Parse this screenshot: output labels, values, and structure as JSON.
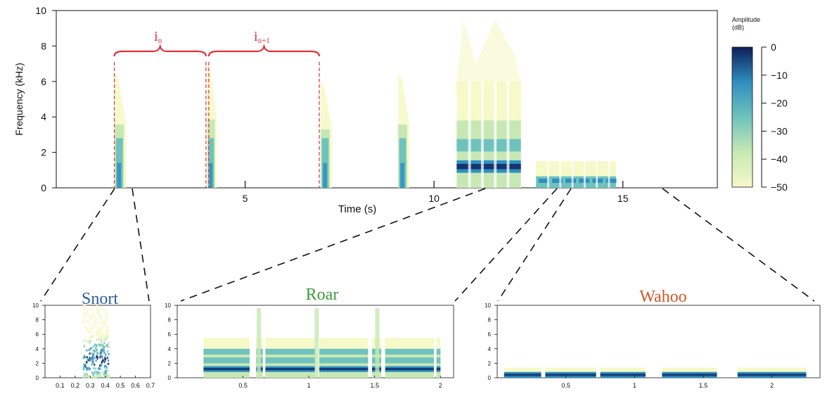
{
  "colors": {
    "scale_low": "#f6f9c8",
    "scale_mid1": "#c7e8b4",
    "scale_mid2": "#6fc2bd",
    "scale_mid3": "#2f8fc0",
    "scale_high": "#0e1e5a",
    "annotation": "#e0303a",
    "snort_title": "#2c5d9c",
    "roar_title": "#3c9a3c",
    "wahoo_title": "#d2572a"
  },
  "chart_data": [
    {
      "type": "heatmap",
      "xlabel": "Time (s)",
      "ylabel": "Frequency (kHz)",
      "xlim": [
        0,
        17.5
      ],
      "ylim": [
        0,
        10
      ],
      "xticks": [
        5,
        10,
        15
      ],
      "yticks": [
        0,
        2,
        4,
        6,
        8,
        10
      ],
      "colorbar": {
        "title": "Amplitude",
        "unit": "(dB)",
        "ticks": [
          0,
          -10,
          -20,
          -30,
          -40,
          -50
        ],
        "range": [
          -50,
          0
        ]
      },
      "annotations": [
        {
          "label": "i",
          "sub": "n",
          "x_start": 1.5,
          "x_end": 4.0
        },
        {
          "label": "i",
          "sub": "n+1",
          "x_start": 4.0,
          "x_end": 7.0
        }
      ],
      "events": [
        {
          "kind": "snort",
          "t_start": 1.55,
          "t_end": 1.85,
          "f_max": 6.5,
          "peak_f": 2.0
        },
        {
          "kind": "snort",
          "t_start": 4.0,
          "t_end": 4.25,
          "f_max": 7.0,
          "peak_f": 2.0
        },
        {
          "kind": "snort",
          "t_start": 7.0,
          "t_end": 7.3,
          "f_max": 6.0,
          "peak_f": 2.0
        },
        {
          "kind": "snort",
          "t_start": 9.05,
          "t_end": 9.35,
          "f_max": 6.5,
          "peak_f": 2.0
        },
        {
          "kind": "roar",
          "t_start": 10.6,
          "t_end": 12.3,
          "f_max": 9.5,
          "peak_f": 1.2
        },
        {
          "kind": "wahoo",
          "t_start": 12.7,
          "t_end": 15.0,
          "f_max": 2.5,
          "peak_f": 0.4
        }
      ]
    },
    {
      "type": "heatmap",
      "title": "Snort",
      "xlim": [
        0,
        0.7
      ],
      "ylim": [
        0,
        10
      ],
      "xticks": [
        0.1,
        0.2,
        0.3,
        0.4,
        0.5,
        0.6,
        0.7
      ],
      "yticks": [
        0,
        2,
        4,
        6,
        8,
        10
      ],
      "events": [
        {
          "t_start": 0.25,
          "t_end": 0.42,
          "f_max": 10,
          "peak_f": 2.5
        }
      ]
    },
    {
      "type": "heatmap",
      "title": "Roar",
      "xlim": [
        0,
        2.1
      ],
      "ylim": [
        0,
        10
      ],
      "xticks": [
        0.5,
        1,
        1.5,
        2
      ],
      "yticks": [
        0,
        2,
        4,
        6,
        8,
        10
      ],
      "segments": [
        [
          0.2,
          0.55
        ],
        [
          0.6,
          0.65
        ],
        [
          0.67,
          1.05
        ],
        [
          1.08,
          1.45
        ],
        [
          1.48,
          1.55
        ],
        [
          1.58,
          1.95
        ],
        [
          1.97,
          2.0
        ]
      ],
      "bands_khz": [
        1.2,
        2.4,
        3.6
      ]
    },
    {
      "type": "heatmap",
      "title": "Wahoo",
      "xlim": [
        0,
        2.35
      ],
      "ylim": [
        0,
        10
      ],
      "xticks": [
        0.5,
        1,
        1.5,
        2
      ],
      "yticks": [
        0,
        2,
        4,
        6,
        8,
        10
      ],
      "segments": [
        [
          0.05,
          0.32
        ],
        [
          0.35,
          0.72
        ],
        [
          0.75,
          1.08
        ],
        [
          1.2,
          1.6
        ],
        [
          1.75,
          2.25
        ]
      ],
      "bands_khz": [
        0.4
      ]
    }
  ]
}
